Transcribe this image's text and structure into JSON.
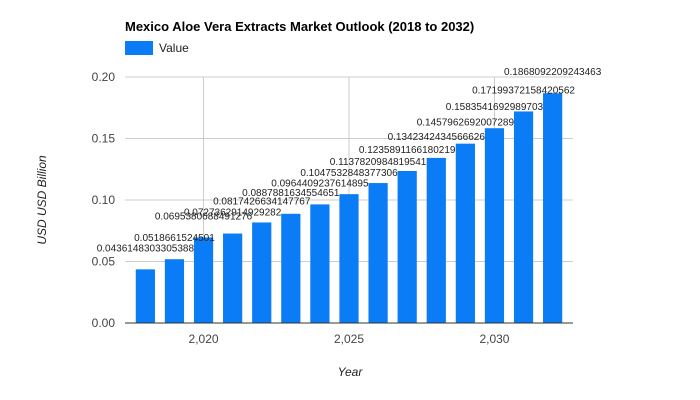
{
  "chart_data": {
    "type": "bar",
    "title": "Mexico Aloe Vera Extracts Market Outlook (2018 to 2032)",
    "xlabel": "Year",
    "ylabel": "USD USD Billion",
    "ylim": [
      0,
      0.2
    ],
    "yticks": [
      "0.00",
      "0.05",
      "0.10",
      "0.15",
      "0.20"
    ],
    "yticks_values": [
      0,
      0.05,
      0.1,
      0.15,
      0.2
    ],
    "xticks": [
      "2,020",
      "2,025",
      "2,030"
    ],
    "xticks_values": [
      2020,
      2025,
      2030
    ],
    "x_range": [
      2017.3,
      2032.7
    ],
    "legend_position": "top-left",
    "grid": true,
    "bar_color": "#0a7cf5",
    "categories": [
      2018,
      2019,
      2020,
      2021,
      2022,
      2023,
      2024,
      2025,
      2026,
      2027,
      2028,
      2029,
      2030,
      2031,
      2032
    ],
    "series": [
      {
        "name": "Value",
        "values": [
          0.0436148303305388,
          0.0518661524501,
          0.0695380688491276,
          0.0727362914929282,
          0.0817426634147767,
          0.0887881634554651,
          0.0964409237614895,
          0.10475328483773,
          0.113782098481954,
          0.123589116618021,
          0.134234243456662,
          0.145796269200729,
          0.15835416929897,
          0.171993721584205,
          0.186809220924346
        ]
      }
    ],
    "data_labels": [
      "0.0436148303305388",
      "0.0518661524501",
      "0.0695380688491276",
      "0.0727362914929282",
      "0.0817426634147767",
      "0.0887881634554651",
      "0.0964409237614895",
      "0.1047532848377306",
      "0.1137820984819541",
      "0.1235891166180219",
      "0.1342342434566626",
      "0.1457962692007289",
      "0.1583541692989703",
      "0.17199372158420562",
      "0.1868092209243463"
    ]
  }
}
